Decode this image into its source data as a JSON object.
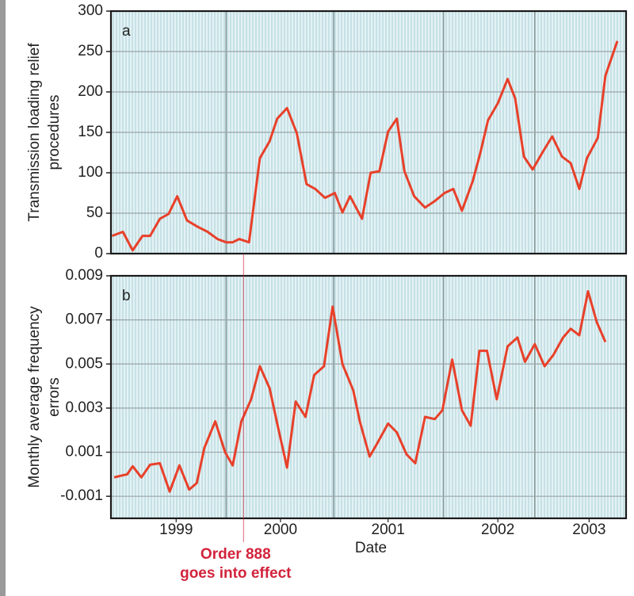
{
  "chart_data": [
    {
      "type": "line",
      "label": "a",
      "ylabel": [
        "Transmission loading relief",
        "procedures"
      ],
      "color": "#e8402a",
      "xlim": [
        1999.0,
        2003.74
      ],
      "ylim": [
        0,
        300
      ],
      "yticks": [
        0,
        50,
        100,
        150,
        200,
        250,
        300
      ],
      "x": [
        1999.01,
        1999.11,
        1999.2,
        1999.29,
        1999.36,
        1999.45,
        1999.53,
        1999.61,
        1999.7,
        1999.8,
        1999.89,
        1999.98,
        2000.06,
        2000.12,
        2000.18,
        2000.27,
        2000.37,
        2000.46,
        2000.53,
        2000.62,
        2000.71,
        2000.8,
        2000.88,
        2000.97,
        2001.06,
        2001.13,
        2001.2,
        2001.31,
        2001.39,
        2001.47,
        2001.55,
        2001.63,
        2001.7,
        2001.79,
        2001.89,
        2001.98,
        2002.07,
        2002.15,
        2002.23,
        2002.33,
        2002.4,
        2002.47,
        2002.56,
        2002.65,
        2002.72,
        2002.8,
        2002.88,
        2002.97,
        2003.06,
        2003.15,
        2003.23,
        2003.31,
        2003.38,
        2003.48,
        2003.55,
        2003.66
      ],
      "values": [
        22,
        27,
        4,
        22,
        22,
        43,
        49,
        71,
        41,
        33,
        27,
        18,
        14,
        14,
        18,
        14,
        118,
        139,
        167,
        180,
        149,
        86,
        80,
        69,
        75,
        51,
        71,
        43,
        100,
        102,
        151,
        167,
        102,
        71,
        57,
        65,
        75,
        80,
        53,
        90,
        125,
        165,
        186,
        216,
        192,
        120,
        104,
        125,
        145,
        120,
        112,
        80,
        118,
        143,
        220,
        263
      ]
    },
    {
      "type": "line",
      "label": "b",
      "ylabel": [
        "Monthly average frequency",
        "errors"
      ],
      "xlabel": "Date",
      "color": "#e8402a",
      "xlim": [
        1999.0,
        2003.74
      ],
      "xticks": [
        {
          "value": 1999.6,
          "label": "1999"
        },
        {
          "value": 2000.56,
          "label": "2000"
        },
        {
          "value": 2001.55,
          "label": "2001"
        },
        {
          "value": 2002.56,
          "label": "2002"
        },
        {
          "value": 2003.4,
          "label": "2003"
        }
      ],
      "ylim": [
        -0.002,
        0.009
      ],
      "yticks": [
        -0.001,
        0.001,
        0.003,
        0.005,
        0.007,
        0.009
      ],
      "x": [
        1999.03,
        1999.09,
        1999.15,
        1999.2,
        1999.28,
        1999.36,
        1999.45,
        1999.54,
        1999.63,
        1999.72,
        1999.79,
        1999.86,
        1999.96,
        2000.05,
        2000.12,
        2000.2,
        2000.29,
        2000.37,
        2000.46,
        2000.53,
        2000.62,
        2000.7,
        2000.79,
        2000.87,
        2000.96,
        2001.04,
        2001.13,
        2001.23,
        2001.29,
        2001.38,
        2001.45,
        2001.55,
        2001.63,
        2001.72,
        2001.8,
        2001.89,
        2001.98,
        2002.05,
        2002.14,
        2002.23,
        2002.31,
        2002.39,
        2002.46,
        2002.55,
        2002.65,
        2002.74,
        2002.81,
        2002.9,
        2002.99,
        2003.07,
        2003.16,
        2003.23,
        2003.31,
        2003.39,
        2003.47,
        2003.55
      ],
      "values": [
        -0.00014,
        -7e-05,
        0.0,
        0.00036,
        -0.00014,
        0.00043,
        0.0005,
        -0.00079,
        0.0004,
        -0.0007,
        -0.0004,
        0.0012,
        0.0024,
        0.001,
        0.0004,
        0.0024,
        0.0034,
        0.0049,
        0.0039,
        0.0023,
        0.0003,
        0.0033,
        0.0026,
        0.0045,
        0.0049,
        0.0076,
        0.005,
        0.0038,
        0.0024,
        0.0008,
        0.0014,
        0.0023,
        0.0019,
        0.0009,
        0.0005,
        0.0026,
        0.0025,
        0.0029,
        0.0052,
        0.0029,
        0.0022,
        0.0056,
        0.0056,
        0.0034,
        0.0058,
        0.0062,
        0.0051,
        0.0059,
        0.0049,
        0.0054,
        0.0062,
        0.0066,
        0.0063,
        0.0083,
        0.0069,
        0.006
      ],
      "annotation": {
        "text": [
          "Order 888",
          "goes into effect"
        ],
        "x": 2000.22,
        "color": "#d2233c"
      }
    }
  ]
}
